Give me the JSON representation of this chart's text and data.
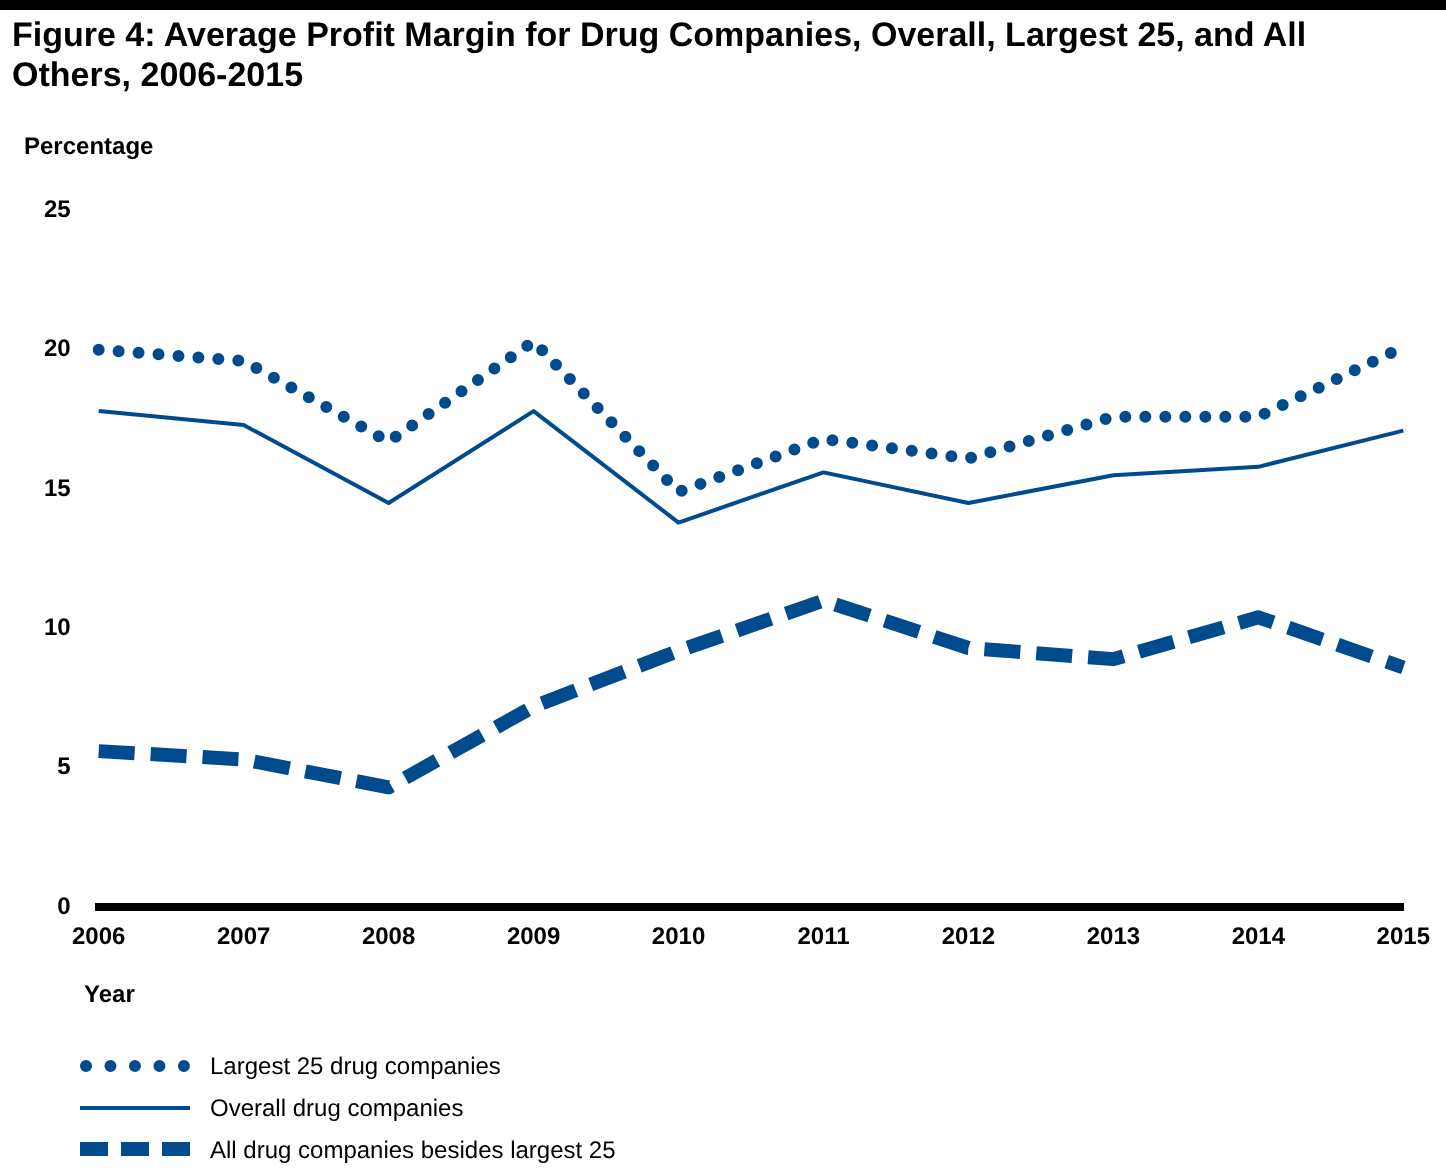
{
  "chart_data": {
    "type": "line",
    "title": "Figure 4: Average Profit Margin for Drug Companies, Overall, Largest 25, and All Others, 2006-2015",
    "ylabel": "Percentage",
    "xlabel": "Year",
    "categories": [
      "2006",
      "2007",
      "2008",
      "2009",
      "2010",
      "2011",
      "2012",
      "2013",
      "2014",
      "2015"
    ],
    "ylim": [
      0,
      25
    ],
    "yticks": [
      0,
      5,
      10,
      15,
      20,
      25
    ],
    "grid": false,
    "legend": "bottom",
    "marker": "none",
    "series": [
      {
        "name": "Largest 25 drug companies",
        "color": "#004b8d",
        "line_style": "dotted",
        "values": [
          20.0,
          19.6,
          16.7,
          20.3,
          14.9,
          16.8,
          16.1,
          17.6,
          17.6,
          20.1
        ]
      },
      {
        "name": "Overall drug companies",
        "color": "#004b8d",
        "line_style": "solid",
        "values": [
          17.8,
          17.3,
          14.5,
          17.8,
          13.8,
          15.6,
          14.5,
          15.5,
          15.8,
          17.1
        ]
      },
      {
        "name": "All drug companies besides largest 25",
        "color": "#004b8d",
        "line_style": "dashed",
        "values": [
          5.6,
          5.3,
          4.3,
          7.2,
          9.2,
          11.0,
          9.3,
          8.9,
          10.4,
          8.6
        ]
      }
    ]
  }
}
